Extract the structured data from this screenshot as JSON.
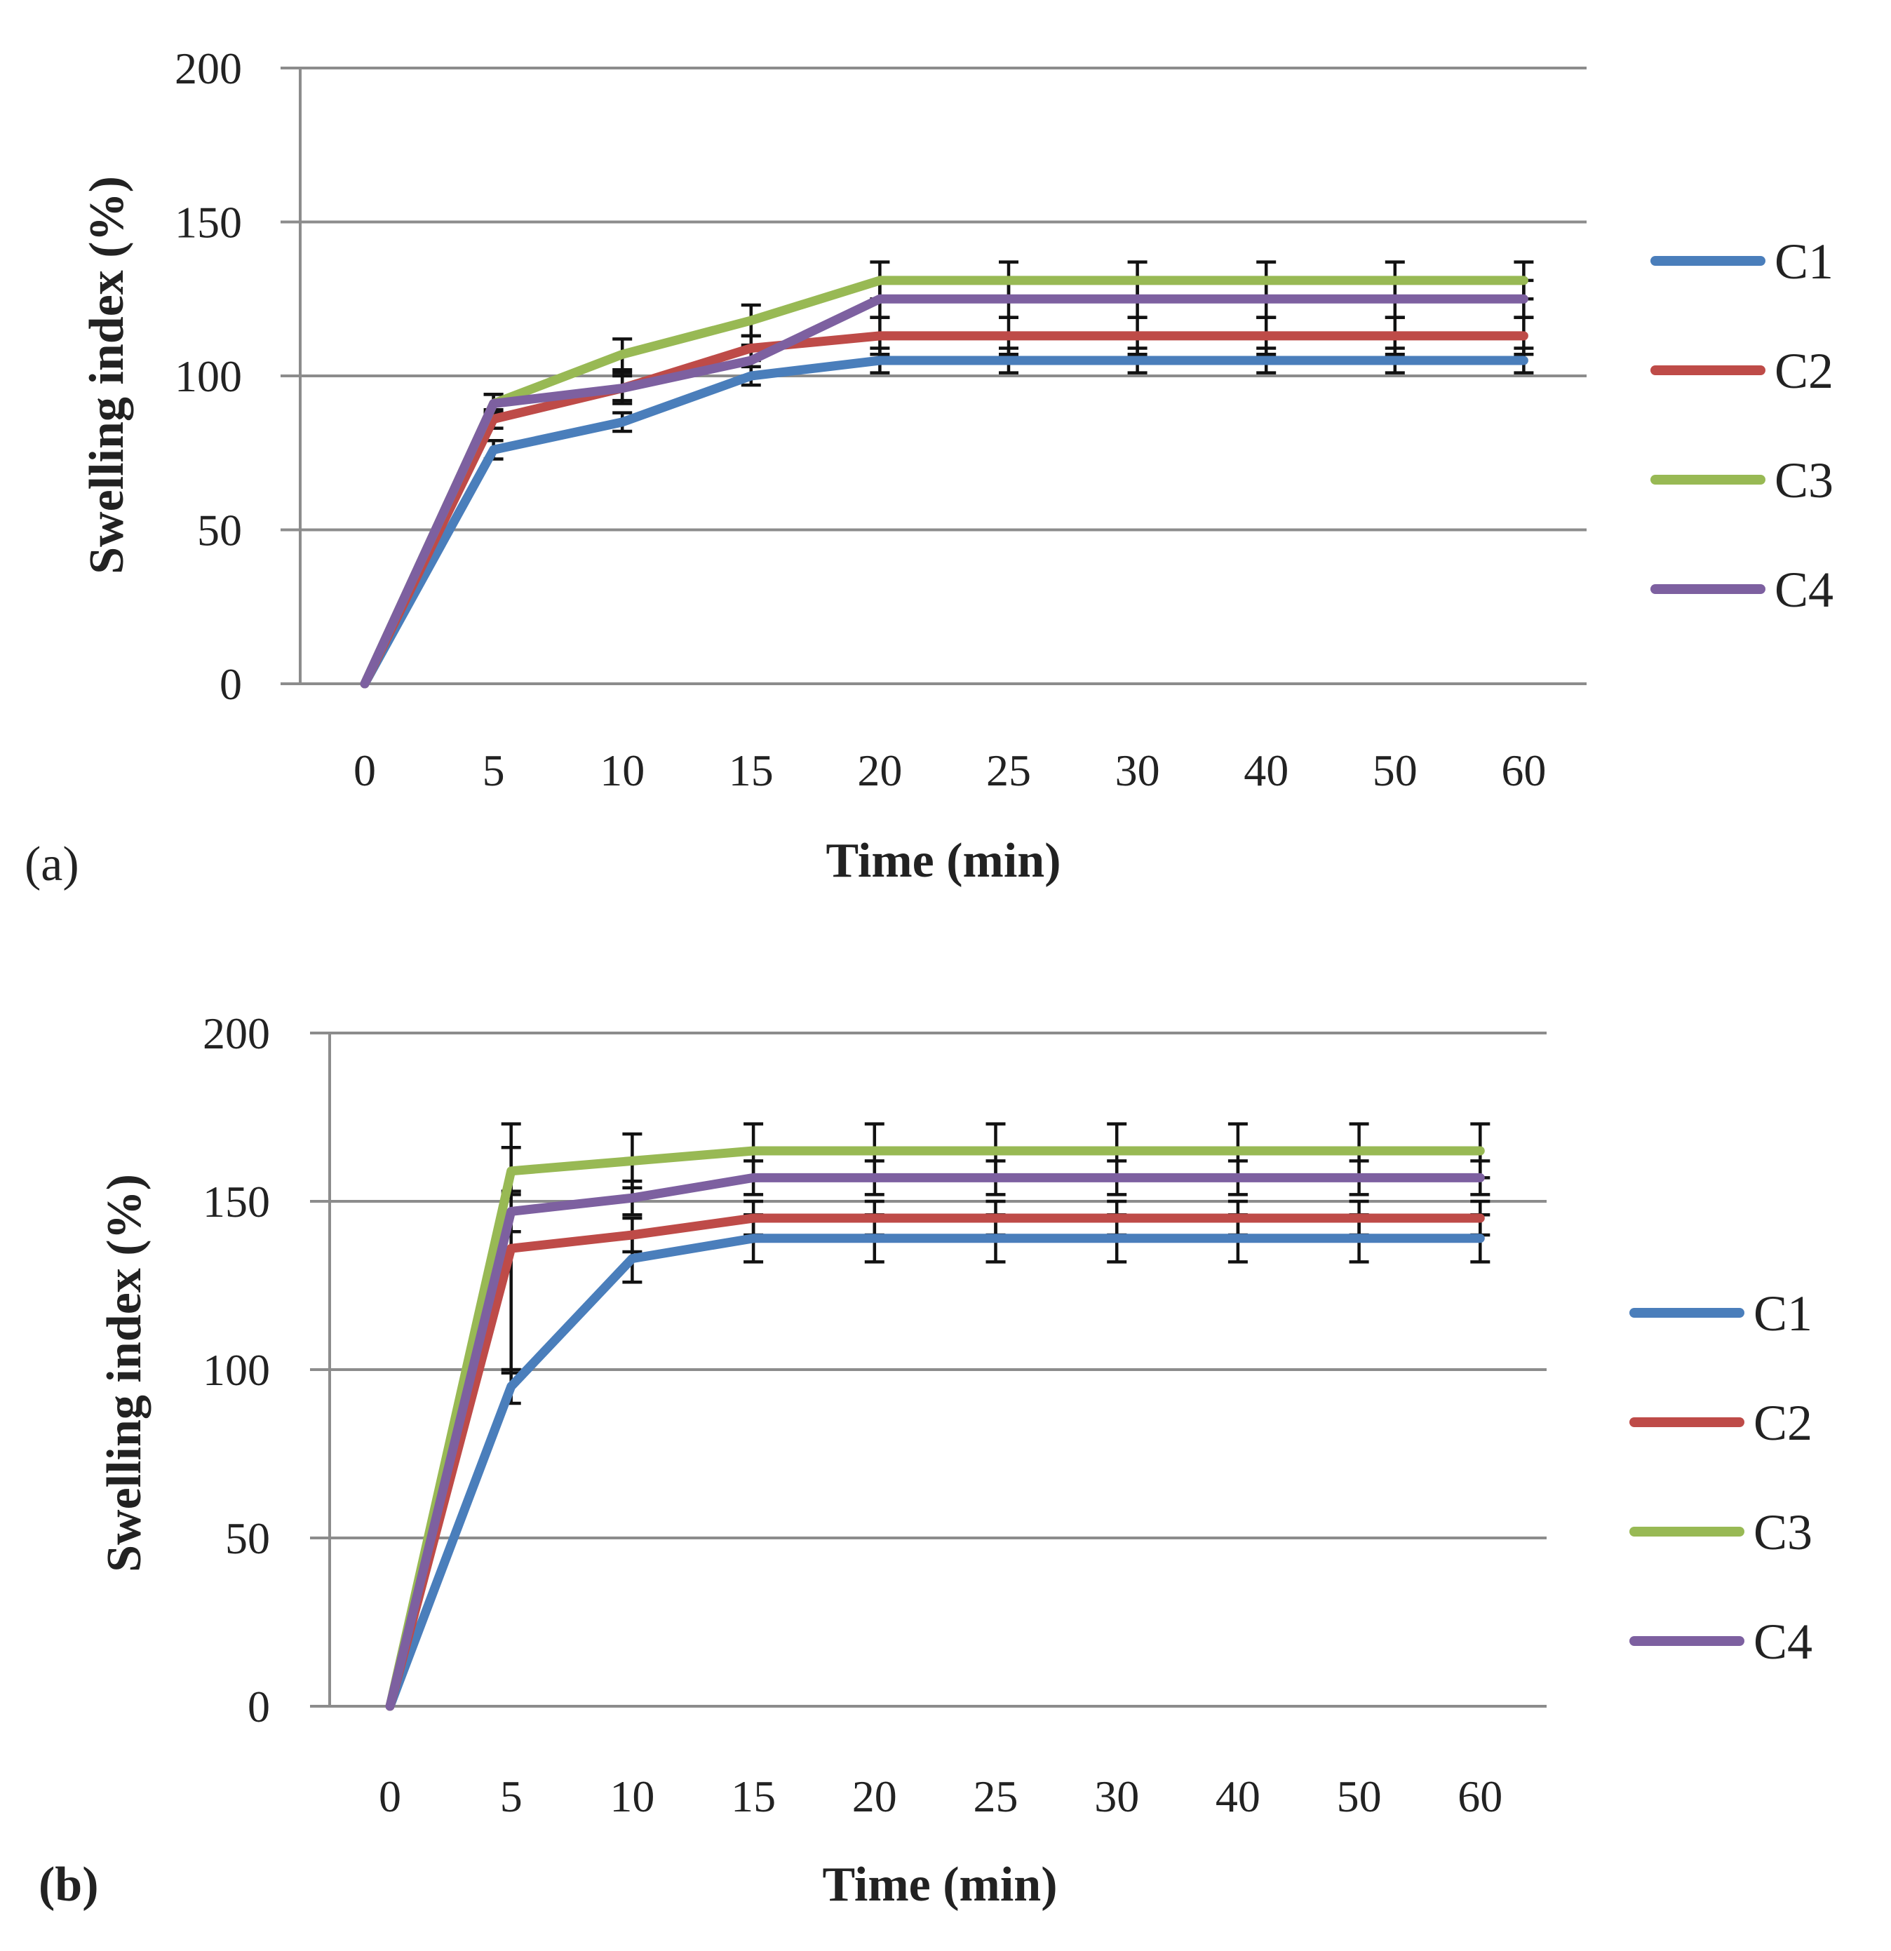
{
  "colors": {
    "C1": "#4a7ebb",
    "C2": "#be4b48",
    "C3": "#98b954",
    "C4": "#7d60a0"
  },
  "chart_data": [
    {
      "id": "a",
      "type": "line",
      "panel_label": "(a)",
      "xlabel": "Time (min)",
      "ylabel": "Swelling index (%)",
      "ylim": [
        0,
        200
      ],
      "yticks": [
        0,
        50,
        100,
        150,
        200
      ],
      "grid": true,
      "legend_position": "right",
      "categories": [
        "0",
        "5",
        "10",
        "15",
        "20",
        "25",
        "30",
        "40",
        "50",
        "60"
      ],
      "series": [
        {
          "name": "C1",
          "values": [
            0,
            76,
            85,
            100,
            105,
            105,
            105,
            105,
            105,
            105
          ],
          "errors": [
            0,
            3,
            3,
            3,
            4,
            4,
            4,
            4,
            4,
            4
          ]
        },
        {
          "name": "C2",
          "values": [
            0,
            86,
            96,
            109,
            113,
            113,
            113,
            113,
            113,
            113
          ],
          "errors": [
            0,
            3,
            4,
            4,
            6,
            6,
            6,
            6,
            6,
            6
          ]
        },
        {
          "name": "C3",
          "values": [
            0,
            91,
            107,
            118,
            131,
            131,
            131,
            131,
            131,
            131
          ],
          "errors": [
            0,
            3,
            5,
            5,
            6,
            6,
            6,
            6,
            6,
            6
          ]
        },
        {
          "name": "C4",
          "values": [
            0,
            91,
            96,
            105,
            125,
            125,
            125,
            125,
            125,
            125
          ],
          "errors": [
            0,
            3,
            5,
            5,
            6,
            6,
            6,
            6,
            6,
            6
          ]
        }
      ]
    },
    {
      "id": "b",
      "type": "line",
      "panel_label": "(b)",
      "xlabel": "Time (min)",
      "ylabel": "Swelling index (%)",
      "ylim": [
        0,
        200
      ],
      "yticks": [
        0,
        50,
        100,
        150,
        200
      ],
      "grid": true,
      "legend_position": "right",
      "categories": [
        "0",
        "5",
        "10",
        "15",
        "20",
        "25",
        "30",
        "40",
        "50",
        "60"
      ],
      "series": [
        {
          "name": "C1",
          "values": [
            0,
            95,
            133,
            139,
            139,
            139,
            139,
            139,
            139,
            139
          ],
          "errors": [
            0,
            5,
            7,
            7,
            7,
            7,
            7,
            7,
            7,
            7
          ]
        },
        {
          "name": "C2",
          "values": [
            0,
            136,
            140,
            145,
            145,
            145,
            145,
            145,
            145,
            145
          ],
          "errors": [
            0,
            37,
            5,
            5,
            5,
            5,
            5,
            5,
            5,
            5
          ]
        },
        {
          "name": "C3",
          "values": [
            0,
            159,
            162,
            165,
            165,
            165,
            165,
            165,
            165,
            165
          ],
          "errors": [
            0,
            7,
            8,
            8,
            8,
            8,
            8,
            8,
            8,
            8
          ]
        },
        {
          "name": "C4",
          "values": [
            0,
            147,
            151,
            157,
            157,
            157,
            157,
            157,
            157,
            157
          ],
          "errors": [
            0,
            6,
            5,
            5,
            5,
            5,
            5,
            5,
            5,
            5
          ]
        }
      ]
    }
  ]
}
